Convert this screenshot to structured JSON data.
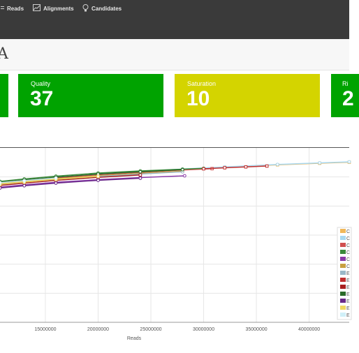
{
  "nav": {
    "items": [
      {
        "label": "Reads",
        "icon": "reads-icon"
      },
      {
        "label": "Alignments",
        "icon": "alignments-icon"
      },
      {
        "label": "Candidates",
        "icon": "lightbulb-icon"
      }
    ]
  },
  "page": {
    "title": "A"
  },
  "cards": [
    {
      "label": "",
      "value": "",
      "color": "#00a300"
    },
    {
      "label": "Quality",
      "value": "37",
      "color": "#00a300"
    },
    {
      "label": "Saturation",
      "value": "10",
      "color": "#d4d400"
    },
    {
      "label": "Ri",
      "value": "2",
      "color": "#00a300"
    }
  ],
  "chart_data": {
    "type": "line",
    "xlabel": "Reads",
    "ylabel": "",
    "xlim": [
      10700000,
      43800000
    ],
    "ylim": [
      0,
      1
    ],
    "xticks": [
      15000000,
      20000000,
      25000000,
      30000000,
      35000000,
      40000000
    ],
    "grid": true,
    "legend_position": "right",
    "series": [
      {
        "name": "C",
        "color": "#f0b85a",
        "marker": "square",
        "x": [
          10700000,
          13000000,
          16000000,
          20000000,
          24000000,
          28000000,
          32000000,
          37000000,
          41000000,
          43800000
        ],
        "y": [
          0.8,
          0.812,
          0.828,
          0.847,
          0.862,
          0.876,
          0.889,
          0.903,
          0.912,
          0.918
        ]
      },
      {
        "name": "C",
        "color": "#a8d8f0",
        "marker": "circle",
        "x": [
          10700000,
          13000000,
          16000000,
          20000000,
          24000000,
          28000000,
          32000000,
          37000000,
          41000000,
          43800000
        ],
        "y": [
          0.804,
          0.816,
          0.831,
          0.85,
          0.865,
          0.879,
          0.891,
          0.905,
          0.914,
          0.92
        ]
      },
      {
        "name": "C",
        "color": "#d05050",
        "marker": "square",
        "x": [
          10700000,
          13000000,
          16000000,
          20000000,
          24000000,
          28000000,
          30800000
        ],
        "y": [
          0.798,
          0.812,
          0.828,
          0.846,
          0.86,
          0.873,
          0.881
        ]
      },
      {
        "name": "C",
        "color": "#3a8a3a",
        "marker": "circle",
        "x": [
          10700000,
          13000000,
          16000000,
          20000000,
          24000000,
          28000000,
          30000000
        ],
        "y": [
          0.808,
          0.822,
          0.838,
          0.856,
          0.868,
          0.878,
          0.883
        ]
      },
      {
        "name": "C",
        "color": "#8a3aa8",
        "marker": "circle",
        "x": [
          10700000,
          13000000,
          16000000,
          20000000,
          24000000,
          28200000
        ],
        "y": [
          0.775,
          0.788,
          0.803,
          0.818,
          0.83,
          0.84
        ]
      },
      {
        "name": "C",
        "color": "#c8a040",
        "marker": "square",
        "x": [
          10700000,
          13000000,
          16000000,
          20000000,
          24000000,
          28000000
        ],
        "y": [
          0.796,
          0.808,
          0.823,
          0.84,
          0.854,
          0.867
        ]
      },
      {
        "name": "E",
        "color": "#9ab8c8",
        "marker": "circle",
        "x": [
          10700000,
          13000000,
          16000000,
          20000000,
          24000000,
          28000000
        ],
        "y": [
          0.79,
          0.803,
          0.818,
          0.836,
          0.85,
          0.863
        ]
      },
      {
        "name": "E",
        "color": "#c03030",
        "marker": "square",
        "x": [
          30000000,
          32000000,
          34000000,
          36000000
        ],
        "y": [
          0.88,
          0.886,
          0.891,
          0.896
        ]
      },
      {
        "name": "E",
        "color": "#a82020",
        "marker": "square",
        "x": [
          10700000,
          13000000,
          16000000,
          20000000,
          24000000
        ],
        "y": [
          0.785,
          0.798,
          0.814,
          0.831,
          0.845
        ]
      },
      {
        "name": "E",
        "color": "#2a6a2a",
        "marker": "circle",
        "x": [
          10700000,
          13000000,
          16000000,
          20000000,
          24000000,
          28000000
        ],
        "y": [
          0.802,
          0.816,
          0.832,
          0.85,
          0.863,
          0.875
        ]
      },
      {
        "name": "E",
        "color": "#6a2a8a",
        "marker": "circle",
        "x": [
          10700000,
          13000000,
          16000000,
          20000000,
          24000000
        ],
        "y": [
          0.77,
          0.783,
          0.798,
          0.814,
          0.826
        ]
      },
      {
        "name": "E",
        "color": "#f0d860",
        "marker": "square",
        "x": [
          10700000,
          13000000,
          16000000,
          20000000
        ],
        "y": [
          0.792,
          0.804,
          0.82,
          0.837
        ]
      },
      {
        "name": "E",
        "color": "#d0f0f8",
        "marker": "circle",
        "x": [
          10700000,
          13000000,
          16000000
        ],
        "y": [
          0.8,
          0.812,
          0.827
        ]
      }
    ]
  }
}
